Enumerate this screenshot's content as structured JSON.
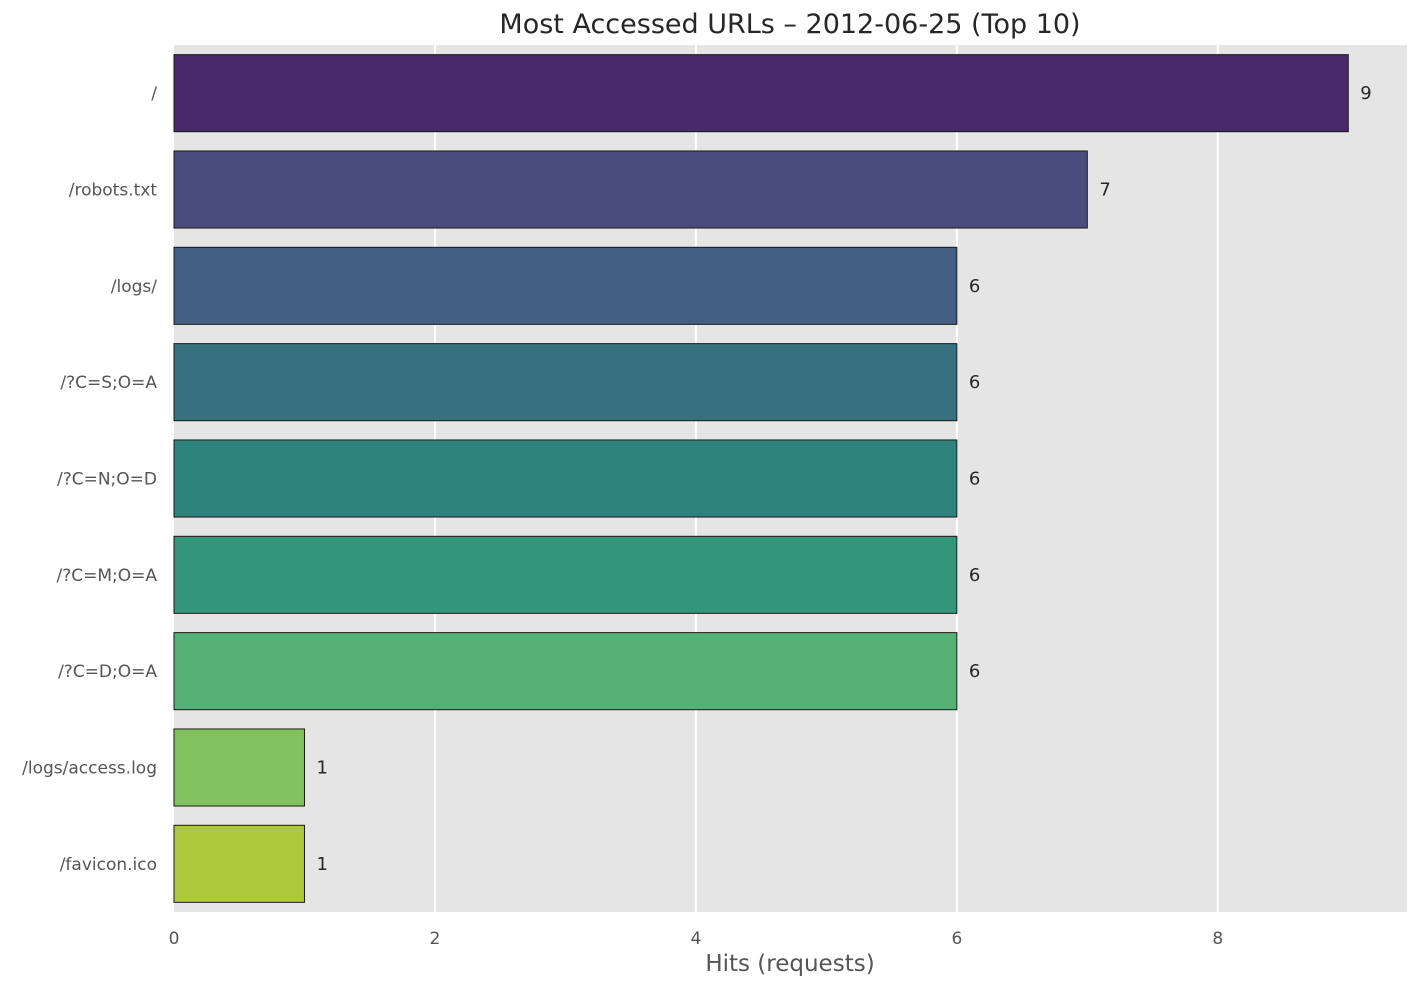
{
  "chart_data": {
    "type": "bar",
    "orientation": "horizontal",
    "title": "Most Accessed URLs – 2012-06-25 (Top 10)",
    "xlabel": "Hits (requests)",
    "ylabel": "",
    "xlim": [
      0,
      9.45
    ],
    "x_ticks": [
      "0",
      "2",
      "4",
      "6",
      "8"
    ],
    "grid": true,
    "categories": [
      "/",
      "/robots.txt",
      "/logs/",
      "/?C=S;O=A",
      "/?C=N;O=D",
      "/?C=M;O=A",
      "/?C=D;O=A",
      "/logs/access.log",
      "/favicon.ico"
    ],
    "values": [
      9,
      7,
      6,
      6,
      6,
      6,
      6,
      1,
      1
    ],
    "value_labels": [
      "9",
      "7",
      "6",
      "6",
      "6",
      "6",
      "6",
      "1",
      "1"
    ],
    "colors": [
      "#482a6b",
      "#4a4c7d",
      "#415f82",
      "#37717f",
      "#2e837d",
      "#349679",
      "#54b074",
      "#82c25e",
      "#adc83b"
    ],
    "plot_background": "#e5e5e5",
    "grid_color": "#ffffff"
  }
}
